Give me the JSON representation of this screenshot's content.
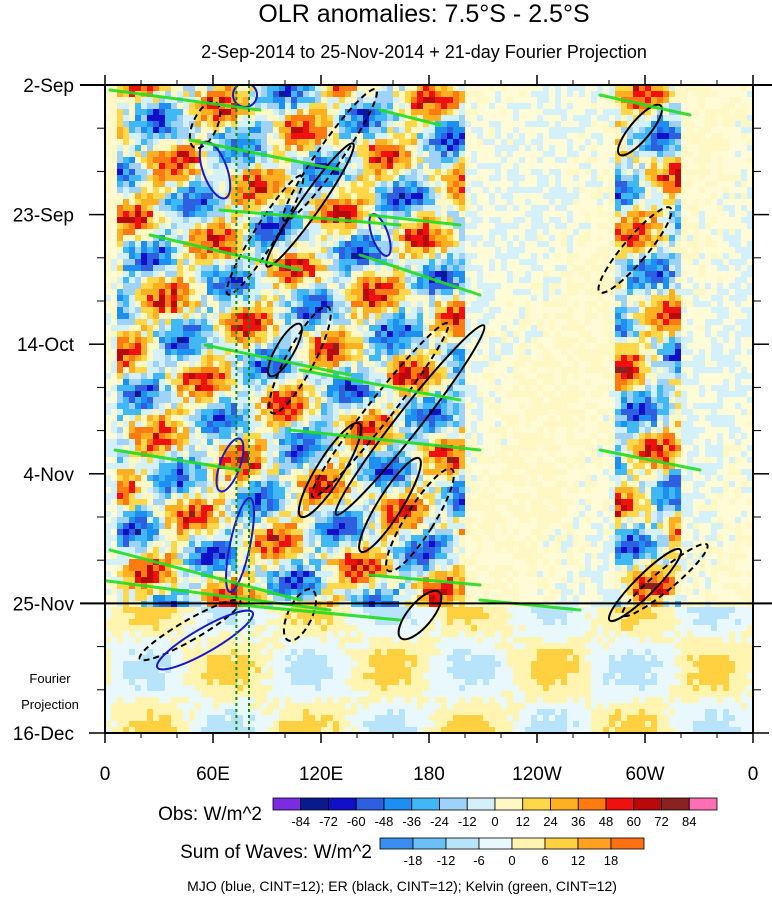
{
  "chart_data": {
    "type": "heatmap",
    "title": "OLR anomalies: 7.5°S - 2.5°S",
    "subtitle": "2-Sep-2014 to 25-Nov-2014 + 21-day Fourier Projection",
    "x_ticks": [
      "0",
      "60E",
      "120E",
      "180",
      "120W",
      "60W",
      "0"
    ],
    "x_values": [
      0,
      60,
      120,
      180,
      240,
      300,
      360
    ],
    "xlim": [
      0,
      360
    ],
    "y_ticks": [
      "2-Sep",
      "23-Sep",
      "14-Oct",
      "4-Nov",
      "25-Nov",
      "16-Dec"
    ],
    "y_day_values": [
      0,
      21,
      42,
      63,
      84,
      105
    ],
    "ylim_days": [
      0,
      105
    ],
    "observation_end_day": 84,
    "projection_label": "Fourier\nProjection",
    "dotted_longitudes": [
      73,
      80
    ],
    "obs_colorbar": {
      "label": "Obs: W/m^2",
      "levels": [
        "-84",
        "-72",
        "-60",
        "-48",
        "-36",
        "-24",
        "-12",
        "0",
        "12",
        "24",
        "36",
        "48",
        "60",
        "72",
        "84"
      ],
      "colors": [
        "#7b2be0",
        "#0a1a8c",
        "#1010c8",
        "#2e5fe0",
        "#1c8ff0",
        "#3fb8f5",
        "#9fd2f8",
        "#d4f0fb",
        "#fff8c4",
        "#ffd84a",
        "#ffb020",
        "#ff7a10",
        "#f01010",
        "#b80a0a",
        "#8a2222",
        "#ff6fb5"
      ]
    },
    "waves_colorbar": {
      "label": "Sum of Waves: W/m^2",
      "levels": [
        "-18",
        "-12",
        "-6",
        "0",
        "6",
        "12",
        "18"
      ],
      "colors": [
        "#3a8ef0",
        "#6cc0f8",
        "#b8e4fb",
        "#e8f8fc",
        "#fff4b0",
        "#ffd040",
        "#ffa020",
        "#ff7010"
      ]
    },
    "contours": {
      "mjo": {
        "name": "MJO",
        "color": "#1a1ac8",
        "cint": 12
      },
      "er": {
        "name": "ER",
        "color": "#000000",
        "cint": 12
      },
      "kelvin": {
        "name": "Kelvin",
        "color": "#22dd22",
        "cint": 12
      }
    },
    "footer": "MJO (blue, CINT=12); ER (black, CINT=12); Kelvin (green, CINT=12)"
  }
}
